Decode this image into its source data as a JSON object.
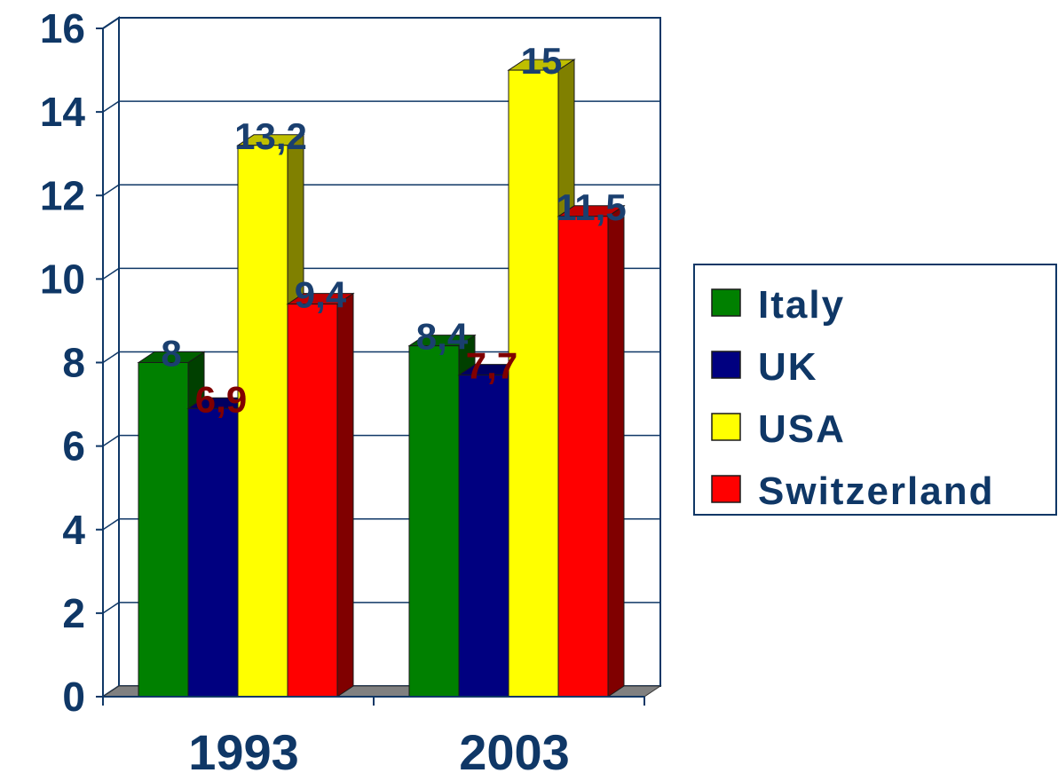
{
  "chart_data": {
    "type": "bar",
    "title": "",
    "xlabel": "",
    "ylabel": "",
    "categories": [
      "1993",
      "2003"
    ],
    "ylim": [
      0,
      16
    ],
    "yticks": [
      0,
      2,
      4,
      6,
      8,
      10,
      12,
      14,
      16
    ],
    "ytick_labels": [
      "0",
      "2",
      "4",
      "6",
      "8",
      "10",
      "12",
      "14",
      "16"
    ],
    "grid": true,
    "legend_position": "right",
    "style": "3d-bar",
    "series": [
      {
        "name": "Italy",
        "color": "#008000",
        "values": [
          8,
          8.4
        ],
        "labels": [
          "8",
          "8,4"
        ],
        "label_color": "#1a3f6f"
      },
      {
        "name": "UK",
        "color": "#000080",
        "values": [
          6.9,
          7.7
        ],
        "labels": [
          "6,9",
          "7,7"
        ],
        "label_color": "#800000"
      },
      {
        "name": "USA",
        "color": "#ffff00",
        "values": [
          13.2,
          15
        ],
        "labels": [
          "13,2",
          "15"
        ],
        "label_color": "#1a3f6f"
      },
      {
        "name": "Switzerland",
        "color": "#ff0000",
        "values": [
          9.4,
          11.5
        ],
        "labels": [
          "9,4",
          "11,5"
        ],
        "label_color": "#1a3f6f"
      }
    ]
  }
}
